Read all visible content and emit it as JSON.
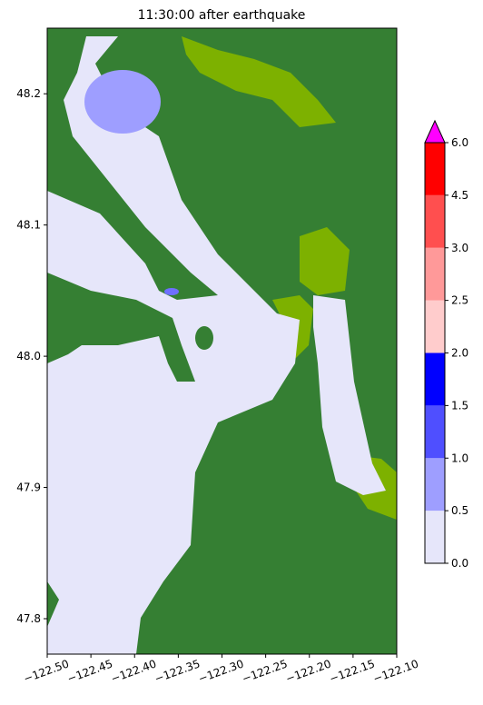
{
  "chart_data": {
    "type": "map",
    "title": "11:30:00 after earthquake",
    "xlim": [
      -122.5,
      -122.1
    ],
    "ylim": [
      47.773,
      48.25
    ],
    "xticks": [
      {
        "value": -122.5,
        "label": "−122.50"
      },
      {
        "value": -122.45,
        "label": "−122.45"
      },
      {
        "value": -122.4,
        "label": "−122.40"
      },
      {
        "value": -122.35,
        "label": "−122.35"
      },
      {
        "value": -122.3,
        "label": "−122.30"
      },
      {
        "value": -122.25,
        "label": "−122.25"
      },
      {
        "value": -122.2,
        "label": "−122.20"
      },
      {
        "value": -122.15,
        "label": "−122.15"
      },
      {
        "value": -122.1,
        "label": "−122.10"
      }
    ],
    "yticks": [
      47.8,
      47.9,
      {
        "value": 48,
        "label": "48.0"
      },
      48.1,
      48.2
    ],
    "colorbar": {
      "levels": [
        {
          "value": 0,
          "label": "0.0"
        },
        0.5,
        {
          "value": 1,
          "label": "1.0"
        },
        1.5,
        {
          "value": 2,
          "label": "2.0"
        },
        2.5,
        {
          "value": 3,
          "label": "3.0"
        },
        4.5,
        {
          "value": 6,
          "label": "6.0"
        }
      ],
      "colors": [
        "#e6e6fa",
        "#9e9eff",
        "#4f4fff",
        "#0000ff",
        "#ffcccc",
        "#ff9999",
        "#ff4f4f",
        "#ff0000"
      ],
      "extend_color": "#ff00ff"
    }
  }
}
